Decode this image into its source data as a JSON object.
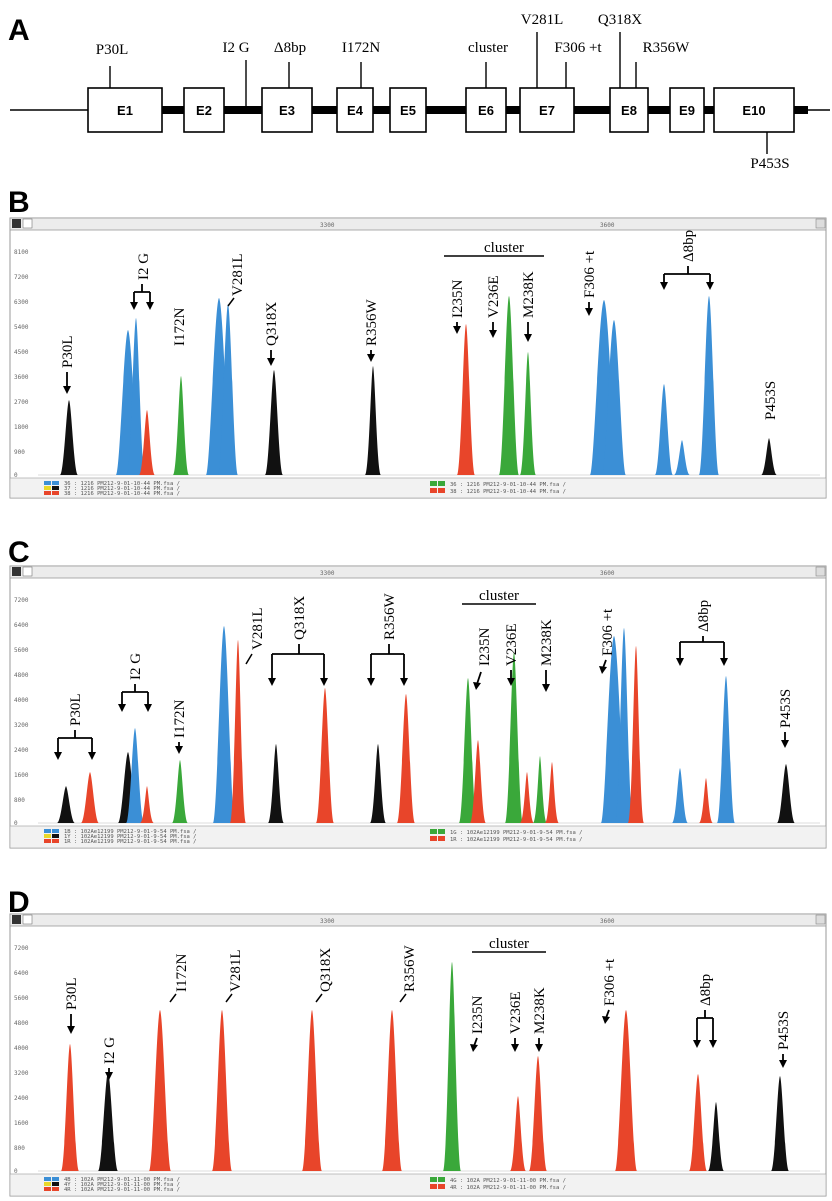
{
  "panels": {
    "A": "A",
    "B": "B",
    "C": "C",
    "D": "D"
  },
  "gene_map": {
    "exons": [
      "E1",
      "E2",
      "E3",
      "E4",
      "E5",
      "E6",
      "E7",
      "E8",
      "E9",
      "E10"
    ],
    "mutations_above": [
      "P30L",
      "I2 G",
      "Δ8bp",
      "I172N",
      "cluster",
      "V281L",
      "F306 +t",
      "Q318X",
      "R356W"
    ],
    "mutations_below": [
      "P453S"
    ]
  },
  "traces": [
    {
      "panel": "B",
      "ruler_labels": [
        "3300",
        "3600"
      ],
      "y_ticks": [
        "8100",
        "7200",
        "6300",
        "5400",
        "4500",
        "3600",
        "2700",
        "1800",
        "900",
        "0"
      ],
      "labels": [
        "P30L",
        "I2 G",
        "I172N",
        "V281L",
        "Q318X",
        "R356W",
        "I235N",
        "V236E",
        "M238K",
        "F306 +t",
        "Δ8bp",
        "P453S"
      ],
      "cluster_label": "cluster",
      "legend": [
        "36 : 1216 PM212-9-01-10-44 PM.fsa /",
        "37 : 1216 PM212-9-01-10-44 PM.fsa /",
        "38 : 1216 PM212-9-01-10-44 PM.fsa /",
        "36 : 1216 PM212-9-01-10-44 PM.fsa /",
        "38 : 1216 PM212-9-01-10-44 PM.fsa /"
      ]
    },
    {
      "panel": "C",
      "ruler_labels": [
        "3300",
        "3600"
      ],
      "y_ticks": [
        "7200",
        "6400",
        "5600",
        "4800",
        "4000",
        "3200",
        "2400",
        "1600",
        "800",
        "0"
      ],
      "labels": [
        "P30L",
        "I2 G",
        "I172N",
        "V281L",
        "Q318X",
        "R356W",
        "I235N",
        "V236E",
        "M238K",
        "F306 +t",
        "Δ8bp",
        "P453S"
      ],
      "cluster_label": "cluster",
      "legend": [
        "1B : 102Ae12199 PM212-9-01-9-54 PM.fsa /",
        "1Y : 102Ae12199 PM212-9-01-9-54 PM.fsa /",
        "1R : 102Ae12199 PM212-9-01-9-54 PM.fsa /",
        "1G : 102Ae12199 PM212-9-01-9-54 PM.fsa /",
        "1R : 102Ae12199 PM212-9-01-9-54 PM.fsa /"
      ]
    },
    {
      "panel": "D",
      "ruler_labels": [
        "3300",
        "3600"
      ],
      "y_ticks": [
        "7200",
        "6400",
        "5600",
        "4800",
        "4000",
        "3200",
        "2400",
        "1600",
        "800",
        "0"
      ],
      "labels": [
        "P30L",
        "I2 G",
        "I172N",
        "V281L",
        "Q318X",
        "R356W",
        "I235N",
        "V236E",
        "M238K",
        "F306 +t",
        "Δ8bp",
        "P453S"
      ],
      "cluster_label": "cluster",
      "legend": [
        "4B : 102A PM212-9-01-11-00 PM.fsa /",
        "4Y : 102A PM212-9-01-11-00 PM.fsa /",
        "4R : 102A PM212-9-01-11-00 PM.fsa /",
        "4G : 102A PM212-9-01-11-00 PM.fsa /",
        "4R : 102A PM212-9-01-11-00 PM.fsa /"
      ]
    }
  ],
  "colors": {
    "red": "#e8452a",
    "green": "#3aa83a",
    "blue": "#3b8fd6",
    "black": "#111111"
  }
}
